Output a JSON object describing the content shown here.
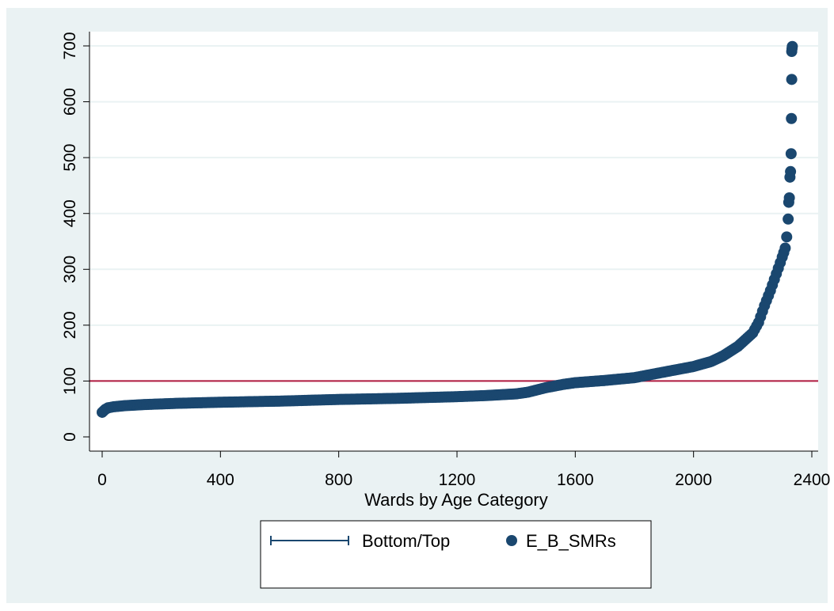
{
  "chart_data": {
    "type": "scatter",
    "title": "",
    "xlabel": "Wards by Age Category",
    "ylabel": "",
    "xlim": [
      0,
      2400
    ],
    "ylim": [
      0,
      700
    ],
    "x_ticks": [
      0,
      400,
      800,
      1200,
      1600,
      2000,
      2400
    ],
    "y_ticks": [
      0,
      100,
      200,
      300,
      400,
      500,
      600,
      700
    ],
    "grid": "horizontal",
    "colors": {
      "background": "#eaf2f3",
      "plot_background": "#ffffff",
      "points": "#1a476f",
      "reference_line": "#b0193f",
      "grid": "#eaf2f3"
    },
    "reference_line": {
      "y": 100
    },
    "series": [
      {
        "name": "E_B_SMRs",
        "marker": "circle",
        "x": [
          0,
          10,
          20,
          40,
          80,
          150,
          250,
          400,
          600,
          800,
          1000,
          1200,
          1300,
          1400,
          1440,
          1500,
          1560,
          1600,
          1700,
          1800,
          1900,
          2000,
          2060,
          2100,
          2150,
          2200,
          2220,
          2240,
          2260,
          2280,
          2300,
          2310,
          2315,
          2320,
          2322,
          2324,
          2326,
          2328,
          2330,
          2331,
          2332
        ],
        "y": [
          44,
          49,
          52,
          54,
          56,
          58,
          60,
          62,
          64,
          67,
          69,
          72,
          74,
          77,
          80,
          88,
          94,
          97,
          101,
          106,
          116,
          126,
          135,
          145,
          162,
          186,
          205,
          235,
          262,
          292,
          322,
          338,
          358,
          390,
          420,
          428,
          465,
          475,
          507,
          570,
          640
        ]
      },
      {
        "name": "E_B_SMRs",
        "marker": "circle",
        "x": [
          2332,
          2333,
          2334
        ],
        "y": [
          690,
          695,
          699
        ]
      }
    ],
    "legend": {
      "placement": "bottom",
      "entries": [
        {
          "label": "Bottom/Top",
          "symbol": "capped-line"
        },
        {
          "label": "E_B_SMRs",
          "symbol": "dot"
        }
      ]
    }
  }
}
